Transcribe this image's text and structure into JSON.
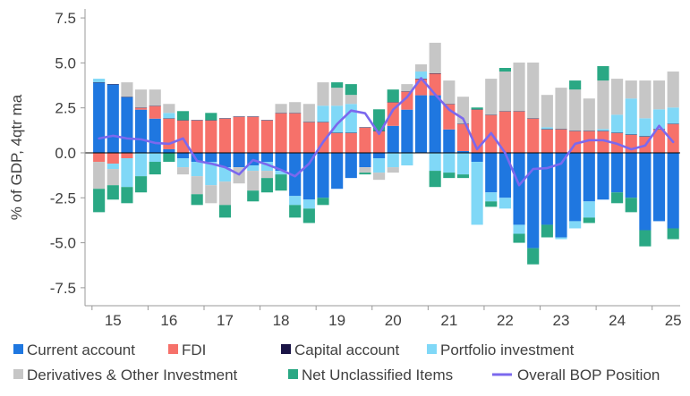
{
  "chart_data": {
    "type": "bar",
    "subtype": "stacked-bar-with-line",
    "title": "",
    "xlabel": "",
    "ylabel": "% of GDP, 4qtr ma",
    "ylim": [
      -8.5,
      8
    ],
    "yticks": [
      7.5,
      5.0,
      2.5,
      0.0,
      -2.5,
      -5.0,
      -7.5
    ],
    "ytick_labels": [
      "7.5",
      "5.0",
      "2.5",
      "0.0",
      "-2.5",
      "-5.0",
      "-7.5"
    ],
    "x_year_labels": [
      "15",
      "16",
      "17",
      "18",
      "19",
      "20",
      "21",
      "22",
      "23",
      "24",
      "25"
    ],
    "quarters": [
      "2015Q1",
      "2015Q2",
      "2015Q3",
      "2015Q4",
      "2016Q1",
      "2016Q2",
      "2016Q3",
      "2016Q4",
      "2017Q1",
      "2017Q2",
      "2017Q3",
      "2017Q4",
      "2018Q1",
      "2018Q2",
      "2018Q3",
      "2018Q4",
      "2019Q1",
      "2019Q2",
      "2019Q3",
      "2019Q4",
      "2020Q1",
      "2020Q2",
      "2020Q3",
      "2020Q4",
      "2021Q1",
      "2021Q2",
      "2021Q3",
      "2021Q4",
      "2022Q1",
      "2022Q2",
      "2022Q3",
      "2022Q4",
      "2023Q1",
      "2023Q2",
      "2023Q3",
      "2023Q4",
      "2024Q1",
      "2024Q2",
      "2024Q3",
      "2024Q4",
      "2025Q1",
      "2025Q2"
    ],
    "grid": false,
    "legend_position": "bottom",
    "series": [
      {
        "name": "Current account",
        "kind": "bar",
        "color": "#1f77e0",
        "values": [
          3.9,
          3.8,
          3.1,
          2.4,
          1.9,
          0.2,
          -0.3,
          -0.5,
          -0.5,
          -0.8,
          -0.8,
          -0.7,
          -0.5,
          -1.0,
          -2.4,
          -2.6,
          -2.5,
          -2.0,
          -1.4,
          -0.8,
          -0.3,
          1.5,
          2.4,
          3.2,
          3.2,
          1.3,
          0.1,
          -0.5,
          -2.2,
          -2.5,
          -4.0,
          -5.3,
          -4.0,
          -4.7,
          -3.8,
          -2.7,
          -2.6,
          -2.2,
          -2.5,
          -4.3,
          -3.8,
          -4.2
        ]
      },
      {
        "name": "FDI",
        "kind": "bar",
        "color": "#f6716a",
        "values": [
          -0.5,
          -0.6,
          -0.3,
          0.1,
          0.7,
          1.7,
          1.8,
          1.8,
          1.8,
          1.9,
          2.0,
          2.0,
          1.8,
          2.2,
          2.2,
          1.7,
          1.7,
          1.1,
          1.1,
          1.4,
          1.2,
          1.3,
          1.0,
          0.9,
          1.2,
          1.4,
          1.5,
          2.4,
          2.1,
          2.3,
          2.3,
          1.9,
          1.3,
          1.3,
          1.2,
          1.2,
          1.2,
          1.1,
          1.0,
          0.9,
          1.3,
          1.6
        ]
      },
      {
        "name": "Capital account",
        "kind": "bar",
        "color": "#1a1446",
        "values": [
          0.02,
          0.02,
          0.02,
          0.02,
          0.02,
          0.02,
          0.02,
          0.02,
          0.02,
          0.02,
          0.02,
          0.02,
          0.02,
          0.02,
          0.02,
          0.02,
          0.02,
          0.02,
          0.02,
          0.02,
          0.02,
          0.02,
          0.02,
          0.02,
          0.02,
          0.02,
          0.02,
          0.02,
          0.02,
          0.02,
          0.02,
          0.02,
          0.02,
          0.02,
          0.02,
          0.02,
          0.02,
          0.02,
          0.02,
          0.02,
          0.02,
          0.02
        ]
      },
      {
        "name": "Portfolio investment",
        "kind": "bar",
        "color": "#80d8f7",
        "values": [
          0.2,
          -0.3,
          -1.6,
          -1.3,
          -0.5,
          0.3,
          -0.5,
          -0.8,
          -1.3,
          -0.8,
          0.0,
          -0.3,
          -0.5,
          -0.2,
          -0.5,
          -0.5,
          0.9,
          1.5,
          1.6,
          0.0,
          -0.8,
          -0.8,
          -0.7,
          0.4,
          -1.0,
          -1.1,
          -1.2,
          -3.5,
          -0.5,
          -0.6,
          -0.5,
          0.0,
          0.1,
          -0.1,
          -0.4,
          -0.9,
          0.1,
          1.0,
          2.0,
          1.0,
          1.1,
          0.9
        ]
      },
      {
        "name": "Derivatives & Other Investment",
        "kind": "bar",
        "color": "#c6c6c6",
        "values": [
          -1.5,
          -0.9,
          0.8,
          1.0,
          0.9,
          0.5,
          -0.4,
          -1.0,
          -1.0,
          -1.3,
          -0.9,
          -1.1,
          -0.4,
          0.5,
          0.6,
          1.0,
          1.3,
          1.0,
          0.5,
          -0.3,
          -0.4,
          -0.3,
          0.4,
          0.4,
          1.7,
          1.3,
          1.5,
          0.0,
          2.0,
          2.2,
          2.7,
          3.1,
          1.8,
          2.3,
          2.3,
          1.8,
          2.7,
          2.0,
          1.0,
          2.1,
          1.6,
          2.0
        ]
      },
      {
        "name": "Net Unclassified Items",
        "kind": "bar",
        "color": "#2aa884",
        "values": [
          -1.3,
          -0.8,
          -0.9,
          -0.9,
          -0.7,
          -0.5,
          0.5,
          -0.6,
          0.4,
          -0.7,
          0.0,
          -0.6,
          -0.8,
          -0.9,
          -0.7,
          -0.8,
          -0.4,
          0.3,
          0.6,
          -0.1,
          1.2,
          0.7,
          0.0,
          0.0,
          -0.9,
          -0.3,
          -0.2,
          0.1,
          -0.3,
          0.2,
          -0.5,
          -0.9,
          -0.7,
          0.0,
          0.5,
          -0.3,
          0.8,
          -0.6,
          -0.8,
          -0.9,
          0.0,
          -0.6
        ]
      },
      {
        "name": "Overall BOP Position",
        "kind": "line",
        "color": "#7b68ee",
        "values": [
          0.8,
          0.95,
          0.8,
          0.75,
          0.55,
          0.5,
          0.8,
          -0.45,
          -0.6,
          -0.8,
          -1.2,
          -0.4,
          -0.65,
          -0.95,
          -1.3,
          -0.6,
          0.6,
          1.6,
          2.35,
          2.2,
          1.05,
          2.4,
          3.1,
          4.15,
          3.25,
          2.4,
          1.9,
          0.2,
          1.1,
          0.0,
          -1.8,
          -0.9,
          -0.85,
          -0.6,
          0.5,
          0.7,
          0.7,
          0.5,
          0.2,
          0.4,
          1.5,
          0.6
        ]
      }
    ]
  },
  "legend": {
    "rows": [
      [
        {
          "label": "Current account",
          "swatch": "box",
          "color": "#1f77e0"
        },
        {
          "label": "FDI",
          "swatch": "box",
          "color": "#f6716a"
        },
        {
          "label": "Capital account",
          "swatch": "box",
          "color": "#1a1446"
        },
        {
          "label": "Portfolio investment",
          "swatch": "box",
          "color": "#80d8f7"
        }
      ],
      [
        {
          "label": "Derivatives & Other Investment",
          "swatch": "box",
          "color": "#c6c6c6"
        },
        {
          "label": "Net Unclassified Items",
          "swatch": "box",
          "color": "#2aa884"
        },
        {
          "label": "Overall BOP Position",
          "swatch": "line",
          "color": "#7b68ee"
        }
      ]
    ]
  }
}
